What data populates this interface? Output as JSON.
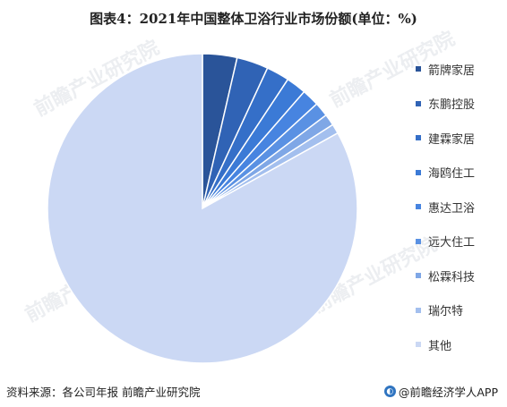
{
  "title": "图表4：2021年中国整体卫浴行业市场份额(单位：%)",
  "footer": {
    "source": "资料来源：各公司年报 前瞻产业研究院",
    "brand": "@前瞻经济学人APP"
  },
  "watermark": "前瞻产业研究院",
  "chart_data": {
    "type": "pie",
    "title": "图表4：2021年中国整体卫浴行业市场份额(单位：%)",
    "start_angle_deg": 0,
    "direction": "clockwise",
    "legend_position": "right",
    "slices": [
      {
        "label": "箭牌家居",
        "value": 3.6,
        "color": "#2a5499"
      },
      {
        "label": "东鹏控股",
        "value": 3.3,
        "color": "#3063b5"
      },
      {
        "label": "建霖家居",
        "value": 2.4,
        "color": "#356fc8"
      },
      {
        "label": "海鸥住工",
        "value": 2.1,
        "color": "#3b7ad6"
      },
      {
        "label": "惠达卫浴",
        "value": 1.8,
        "color": "#4784e0"
      },
      {
        "label": "远大住工",
        "value": 1.5,
        "color": "#5a91e3"
      },
      {
        "label": "松霖科技",
        "value": 1.2,
        "color": "#7fa7e6"
      },
      {
        "label": "瑞尔特",
        "value": 1.0,
        "color": "#a3bfee"
      },
      {
        "label": "其他",
        "value": 83.1,
        "color": "#cbd8f4"
      }
    ]
  }
}
